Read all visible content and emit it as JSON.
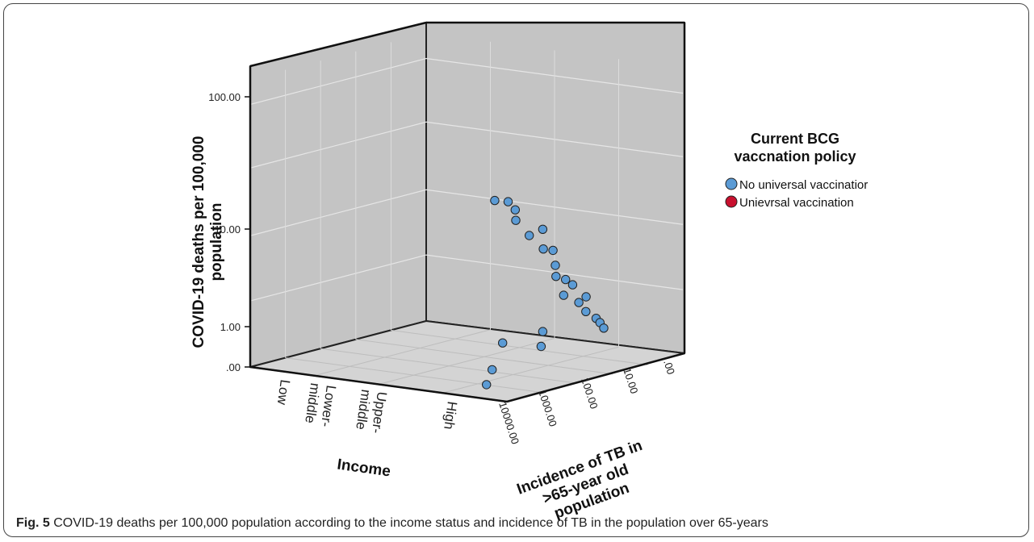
{
  "caption": {
    "label": "Fig. 5",
    "text": "COVID-19 deaths per 100,000 population according to the income status and incidence of TB in the population over 65-years"
  },
  "chart_data": {
    "type": "scatter",
    "title": "",
    "ylabel_line1": "COVID-19 deaths per 100,000",
    "ylabel_line2": "population",
    "xlabel": "Income",
    "zlabel_line1": "Incidence of TB in",
    "zlabel_line2": ">65-year old",
    "zlabel_line3": "population",
    "y_ticks": [
      ".00",
      "1.00",
      "10.00",
      "100.00"
    ],
    "x_categories": [
      "Low",
      "Lower-\nmiddle",
      "Upper-\nmiddle",
      "High"
    ],
    "z_ticks": [
      ".00",
      "10.00",
      "100.00",
      "1000.00",
      "10000.00"
    ],
    "legend": {
      "title_line1": "Current BCG",
      "title_line2": "vaccnation policy",
      "placement": "right"
    },
    "colors": {
      "No universal vaccination": "#5b9bd5",
      "Universal vaccination": "#c8102e",
      "panel": "#c4c4c4",
      "floor": "#d2d2d2"
    },
    "series": [
      {
        "name": "No universal vaccinatior",
        "color": "#5b9bd5",
        "points": [
          [
            3.55,
            0.0,
            0.14,
            "1.2"
          ],
          [
            3.55,
            0.0,
            0.08,
            "0.6"
          ],
          [
            3.6,
            0.0,
            0.03,
            "0.3"
          ],
          [
            3.05,
            0.0,
            0.55,
            "0.9"
          ],
          [
            3.3,
            0.0,
            0.45,
            "0.7"
          ],
          [
            3.7,
            0.0,
            0.04,
            "40"
          ],
          [
            3.8,
            0.0,
            0.08,
            "38"
          ],
          [
            3.8,
            0.0,
            0.12,
            "30"
          ],
          [
            3.7,
            0.0,
            0.16,
            "22"
          ],
          [
            3.8,
            0.0,
            0.2,
            "15"
          ],
          [
            3.9,
            0.0,
            0.24,
            "17"
          ],
          [
            3.8,
            0.0,
            0.28,
            "10"
          ],
          [
            3.95,
            0.0,
            0.28,
            "10"
          ],
          [
            3.85,
            0.0,
            0.33,
            "6.5"
          ],
          [
            3.75,
            0.0,
            0.37,
            "4.7"
          ],
          [
            3.9,
            0.0,
            0.37,
            "4.5"
          ],
          [
            3.9,
            0.0,
            0.41,
            "3.8"
          ],
          [
            3.65,
            0.0,
            0.45,
            "2.7"
          ],
          [
            4.0,
            0.0,
            0.45,
            "2.8"
          ],
          [
            3.75,
            0.0,
            0.5,
            "2.2"
          ],
          [
            3.75,
            0.0,
            0.54,
            "1.7"
          ],
          [
            3.8,
            0.0,
            0.58,
            "1.4"
          ],
          [
            3.75,
            0.0,
            0.62,
            "1.2"
          ],
          [
            3.7,
            0.0,
            0.66,
            "1.0"
          ]
        ]
      },
      {
        "name": "Unievrsal vaccination",
        "color": "#c8102e",
        "points": []
      }
    ]
  }
}
